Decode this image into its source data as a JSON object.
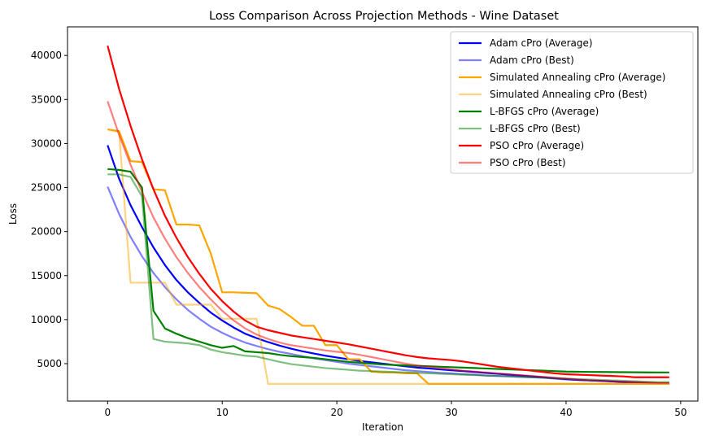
{
  "chart_data": {
    "type": "line",
    "title": "Loss Comparison Across Projection Methods - Wine Dataset",
    "xlabel": "Iteration",
    "ylabel": "Loss",
    "xlim": [
      -3.5,
      51.5
    ],
    "ylim": [
      750,
      43250
    ],
    "xticks": [
      0,
      10,
      20,
      30,
      40,
      50
    ],
    "yticks": [
      5000,
      10000,
      15000,
      20000,
      25000,
      30000,
      35000,
      40000
    ],
    "grid": false,
    "legend_position": "top-right",
    "series": [
      {
        "name": "Adam cPro (Average)",
        "color": "#0000ff",
        "opacity": 1,
        "x": [
          0,
          1,
          2,
          3,
          4,
          5,
          6,
          7,
          8,
          9,
          10,
          11,
          12,
          13,
          14,
          15,
          16,
          17,
          18,
          19,
          20,
          21,
          22,
          23,
          24,
          25,
          26,
          27,
          28,
          29,
          30,
          31,
          32,
          33,
          34,
          35,
          36,
          37,
          38,
          39,
          40,
          41,
          42,
          43,
          44,
          45,
          46,
          47,
          48,
          49
        ],
        "y": [
          29800,
          26000,
          23000,
          20500,
          18200,
          16200,
          14500,
          13100,
          11900,
          10800,
          9900,
          9100,
          8400,
          7900,
          7450,
          7050,
          6700,
          6400,
          6150,
          5900,
          5700,
          5500,
          5300,
          5150,
          5000,
          4850,
          4700,
          4550,
          4450,
          4350,
          4250,
          4150,
          4050,
          3950,
          3850,
          3750,
          3650,
          3550,
          3450,
          3350,
          3250,
          3150,
          3100,
          3050,
          2980,
          2900,
          2850,
          2800,
          2770,
          2750
        ]
      },
      {
        "name": "Adam cPro (Best)",
        "color": "#0000ff",
        "opacity": 0.5,
        "x": [
          0,
          1,
          2,
          3,
          4,
          5,
          6,
          7,
          8,
          9,
          10,
          11,
          12,
          13,
          14,
          15,
          16,
          17,
          18,
          19,
          20,
          21,
          22,
          23,
          24,
          25,
          26,
          27,
          28,
          29,
          30,
          31,
          32,
          33,
          34,
          35,
          36,
          37,
          38,
          39,
          40,
          41,
          42,
          43,
          44,
          45,
          46,
          47,
          48,
          49
        ],
        "y": [
          25100,
          22000,
          19400,
          17200,
          15300,
          13700,
          12300,
          11100,
          10100,
          9200,
          8500,
          7900,
          7400,
          7000,
          6650,
          6350,
          6100,
          5850,
          5600,
          5400,
          5200,
          5000,
          4850,
          4700,
          4550,
          4400,
          4250,
          4150,
          4050,
          3950,
          3900,
          3800,
          3750,
          3650,
          3600,
          3550,
          3500,
          3450,
          3400,
          3300,
          3200,
          3150,
          3100,
          3050,
          3000,
          2950,
          2900,
          2850,
          2800,
          2800
        ]
      },
      {
        "name": "Simulated Annealing cPro (Average)",
        "color": "#ffa500",
        "opacity": 1,
        "x": [
          0,
          1,
          2,
          3,
          4,
          5,
          6,
          7,
          8,
          9,
          10,
          11,
          12,
          13,
          14,
          15,
          16,
          17,
          18,
          19,
          20,
          21,
          22,
          23,
          24,
          25,
          26,
          27,
          28,
          29,
          30,
          31,
          32,
          33,
          34,
          35,
          36,
          37,
          38,
          39,
          40,
          41,
          42,
          43,
          44,
          45,
          46,
          47,
          48,
          49
        ],
        "y": [
          31600,
          31400,
          28000,
          27900,
          24800,
          24700,
          20800,
          20800,
          20700,
          17500,
          13100,
          13100,
          13050,
          13000,
          11600,
          11200,
          10300,
          9300,
          9300,
          7100,
          7100,
          5500,
          5500,
          4100,
          4000,
          4000,
          3900,
          3900,
          2700,
          2700,
          2700,
          2700,
          2700,
          2700,
          2700,
          2700,
          2700,
          2700,
          2700,
          2700,
          2700,
          2700,
          2700,
          2700,
          2700,
          2700,
          2700,
          2700,
          2700,
          2700
        ]
      },
      {
        "name": "Simulated Annealing cPro (Best)",
        "color": "#ffa500",
        "opacity": 0.5,
        "x": [
          0,
          1,
          2,
          3,
          4,
          5,
          6,
          7,
          8,
          9,
          10,
          11,
          12,
          13,
          14,
          15,
          16,
          17,
          18,
          19,
          20,
          21,
          22,
          23,
          24,
          25,
          26,
          27,
          28,
          29,
          30,
          31,
          32,
          33,
          34,
          35,
          36,
          37,
          38,
          39,
          40,
          41,
          42,
          43,
          44,
          45,
          46,
          47,
          48,
          49
        ],
        "y": [
          31600,
          31300,
          14200,
          14200,
          14200,
          14200,
          11700,
          11700,
          11700,
          11700,
          10100,
          10100,
          10100,
          10100,
          2700,
          2700,
          2700,
          2700,
          2700,
          2700,
          2700,
          2700,
          2700,
          2700,
          2700,
          2700,
          2700,
          2700,
          2700,
          2700,
          2700,
          2700,
          2700,
          2700,
          2700,
          2700,
          2700,
          2700,
          2700,
          2700,
          2700,
          2700,
          2700,
          2700,
          2700,
          2700,
          2700,
          2700,
          2700,
          2700
        ]
      },
      {
        "name": "L-BFGS cPro (Average)",
        "color": "#008000",
        "opacity": 1,
        "x": [
          0,
          1,
          2,
          3,
          4,
          5,
          6,
          7,
          8,
          9,
          10,
          11,
          12,
          13,
          14,
          15,
          16,
          17,
          18,
          19,
          20,
          21,
          22,
          23,
          24,
          25,
          26,
          27,
          28,
          29,
          30,
          31,
          32,
          33,
          34,
          35,
          36,
          37,
          38,
          39,
          40,
          41,
          42,
          43,
          44,
          45,
          46,
          47,
          48,
          49
        ],
        "y": [
          27100,
          27000,
          26800,
          25000,
          11000,
          9000,
          8400,
          7900,
          7500,
          7100,
          6800,
          7000,
          6400,
          6300,
          6200,
          6000,
          5850,
          5750,
          5650,
          5500,
          5350,
          5200,
          5100,
          5000,
          4900,
          4850,
          4800,
          4750,
          4700,
          4650,
          4600,
          4550,
          4500,
          4450,
          4400,
          4350,
          4300,
          4250,
          4200,
          4150,
          4100,
          4080,
          4060,
          4050,
          4040,
          4030,
          4020,
          4010,
          4000,
          4000
        ]
      },
      {
        "name": "L-BFGS cPro (Best)",
        "color": "#008000",
        "opacity": 0.5,
        "x": [
          0,
          1,
          2,
          3,
          4,
          5,
          6,
          7,
          8,
          9,
          10,
          11,
          12,
          13,
          14,
          15,
          16,
          17,
          18,
          19,
          20,
          21,
          22,
          23,
          24,
          25,
          26,
          27,
          28,
          29,
          30,
          31,
          32,
          33,
          34,
          35,
          36,
          37,
          38,
          39,
          40,
          41,
          42,
          43,
          44,
          45,
          46,
          47,
          48,
          49
        ],
        "y": [
          26500,
          26500,
          26200,
          24000,
          7800,
          7500,
          7400,
          7300,
          7100,
          6600,
          6300,
          6100,
          5900,
          5800,
          5500,
          5200,
          4950,
          4800,
          4650,
          4500,
          4400,
          4300,
          4200,
          4150,
          4100,
          4050,
          4000,
          3950,
          3900,
          3850,
          3800,
          3750,
          3700,
          3650,
          3600,
          3550,
          3500,
          3450,
          3400,
          3350,
          3300,
          3250,
          3200,
          3150,
          3100,
          3050,
          3000,
          2950,
          2900,
          2900
        ]
      },
      {
        "name": "PSO cPro (Average)",
        "color": "#ff0000",
        "opacity": 1,
        "x": [
          0,
          1,
          2,
          3,
          4,
          5,
          6,
          7,
          8,
          9,
          10,
          11,
          12,
          13,
          14,
          15,
          16,
          17,
          18,
          19,
          20,
          21,
          22,
          23,
          24,
          25,
          26,
          27,
          28,
          29,
          30,
          31,
          32,
          33,
          34,
          35,
          36,
          37,
          38,
          39,
          40,
          41,
          42,
          43,
          44,
          45,
          46,
          47,
          48,
          49
        ],
        "y": [
          41100,
          36200,
          32000,
          28200,
          24800,
          21800,
          19300,
          17100,
          15200,
          13500,
          12100,
          10900,
          9900,
          9200,
          8800,
          8500,
          8200,
          8000,
          7800,
          7600,
          7400,
          7200,
          6950,
          6700,
          6450,
          6200,
          5950,
          5750,
          5600,
          5500,
          5400,
          5250,
          5050,
          4850,
          4650,
          4500,
          4350,
          4200,
          4050,
          3900,
          3800,
          3750,
          3700,
          3650,
          3600,
          3550,
          3450,
          3450,
          3450,
          3450
        ]
      },
      {
        "name": "PSO cPro (Best)",
        "color": "#ff0000",
        "opacity": 0.5,
        "x": [
          0,
          1,
          2,
          3,
          4,
          5,
          6,
          7,
          8,
          9,
          10,
          11,
          12,
          13,
          14,
          15,
          16,
          17,
          18,
          19,
          20,
          21,
          22,
          23,
          24,
          25,
          26,
          27,
          28,
          29,
          30,
          31,
          32,
          33,
          34,
          35,
          36,
          37,
          38,
          39,
          40,
          41,
          42,
          43,
          44,
          45,
          46,
          47,
          48,
          49
        ],
        "y": [
          34800,
          31000,
          27600,
          24500,
          21600,
          19200,
          17100,
          15300,
          13700,
          12300,
          11000,
          9900,
          9000,
          8300,
          7800,
          7400,
          7100,
          6900,
          6700,
          6500,
          6350,
          6200,
          6000,
          5750,
          5500,
          5250,
          5000,
          4800,
          4650,
          4500,
          4350,
          4200,
          4100,
          4000,
          3900,
          3800,
          3700,
          3600,
          3500,
          3400,
          3300,
          3200,
          3100,
          3050,
          3000,
          2950,
          2900,
          2850,
          2800,
          2800
        ]
      }
    ]
  }
}
